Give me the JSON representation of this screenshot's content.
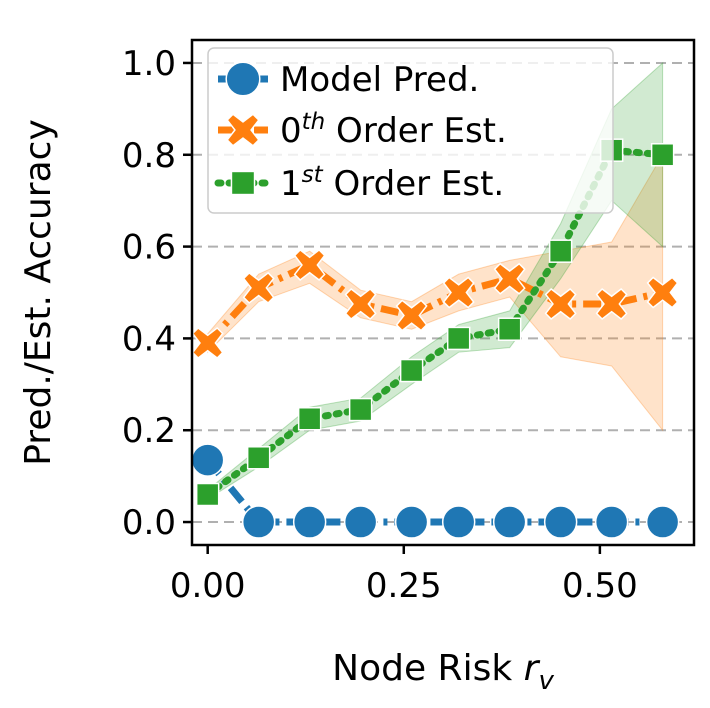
{
  "chart_data": {
    "type": "line",
    "xlabel": "Node Risk ",
    "xlabel_var": "r",
    "xlabel_sub": "v",
    "ylabel": "Pred./Est. Accuracy",
    "xlim": [
      -0.02,
      0.62
    ],
    "ylim": [
      -0.05,
      1.05
    ],
    "xticks": [
      0.0,
      0.25,
      0.5
    ],
    "xtick_labels": [
      "0.00",
      "0.25",
      "0.50"
    ],
    "yticks": [
      0.0,
      0.2,
      0.4,
      0.6,
      0.8,
      1.0
    ],
    "ytick_labels": [
      "0.0",
      "0.2",
      "0.4",
      "0.6",
      "0.8",
      "1.0"
    ],
    "grid": "horizontal dashed",
    "legend_position": "top-left",
    "series": [
      {
        "name": "Model Pred.",
        "color": "#1f77b4",
        "marker": "circle",
        "line": "dash-dot",
        "x": [
          0.0,
          0.065,
          0.13,
          0.195,
          0.26,
          0.32,
          0.385,
          0.45,
          0.515,
          0.58
        ],
        "y": [
          0.135,
          0.0,
          0.0,
          0.0,
          0.0,
          0.0,
          0.0,
          0.0,
          0.0,
          0.0
        ]
      },
      {
        "name": "0th Order Est.",
        "name_base": "0",
        "name_sup": "th",
        "name_rest": " Order Est.",
        "color": "#ff7f0e",
        "marker": "x-filled",
        "line": "dash-dot",
        "x": [
          0.0,
          0.065,
          0.13,
          0.195,
          0.26,
          0.32,
          0.385,
          0.45,
          0.515,
          0.58
        ],
        "y": [
          0.39,
          0.51,
          0.56,
          0.475,
          0.45,
          0.5,
          0.53,
          0.475,
          0.475,
          0.5
        ],
        "band_low": [
          0.37,
          0.48,
          0.52,
          0.445,
          0.42,
          0.46,
          0.49,
          0.36,
          0.34,
          0.2
        ],
        "band_high": [
          0.41,
          0.54,
          0.59,
          0.505,
          0.48,
          0.54,
          0.57,
          0.59,
          0.61,
          0.8
        ]
      },
      {
        "name": "1st Order Est.",
        "name_base": "1",
        "name_sup": "st",
        "name_rest": " Order Est.",
        "color": "#2ca02c",
        "marker": "square",
        "line": "dotted",
        "x": [
          0.0,
          0.065,
          0.13,
          0.195,
          0.26,
          0.32,
          0.385,
          0.45,
          0.515,
          0.58
        ],
        "y": [
          0.06,
          0.14,
          0.225,
          0.245,
          0.33,
          0.4,
          0.42,
          0.59,
          0.81,
          0.8
        ],
        "band_low": [
          0.05,
          0.12,
          0.2,
          0.22,
          0.3,
          0.37,
          0.38,
          0.53,
          0.7,
          0.6
        ],
        "band_high": [
          0.07,
          0.16,
          0.25,
          0.27,
          0.36,
          0.43,
          0.46,
          0.65,
          0.9,
          1.0
        ]
      }
    ]
  }
}
